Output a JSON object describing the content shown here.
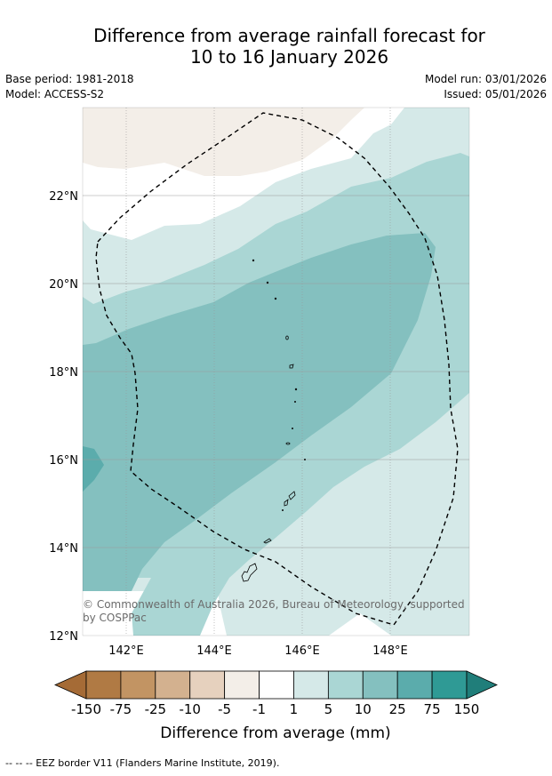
{
  "title_line1": "Difference from average rainfall forecast for",
  "title_line2": "10 to 16 January 2026",
  "meta": {
    "base_period": "Base period: 1981-2018",
    "model": "Model: ACCESS-S2",
    "model_run": "Model run: 03/01/2026",
    "issued": "Issued: 05/01/2026"
  },
  "map": {
    "lat_labels": [
      "22°N",
      "20°N",
      "18°N",
      "16°N",
      "14°N",
      "12°N"
    ],
    "lon_labels": [
      "142°E",
      "144°E",
      "146°E",
      "148°E"
    ],
    "copyright_line1": "© Commonwealth of Australia 2026, Bureau of Meteorology, supported",
    "copyright_line2": "by COSPPac"
  },
  "legend": {
    "ticks": [
      "-150",
      "-75",
      "-25",
      "-10",
      "-5",
      "-1",
      "1",
      "5",
      "10",
      "25",
      "75",
      "150"
    ],
    "colors": [
      "#a56b36",
      "#b07a44",
      "#c29463",
      "#d3b18f",
      "#e6d1be",
      "#f3eee8",
      "#ffffff",
      "#d5e9e8",
      "#aad6d4",
      "#84c0bf",
      "#5bacac",
      "#2f9a95",
      "#207e7a"
    ],
    "label": "Difference from average (mm)"
  },
  "footer": "--  --  -- EEZ border V11 (Flanders Marine Institute, 2019)."
}
